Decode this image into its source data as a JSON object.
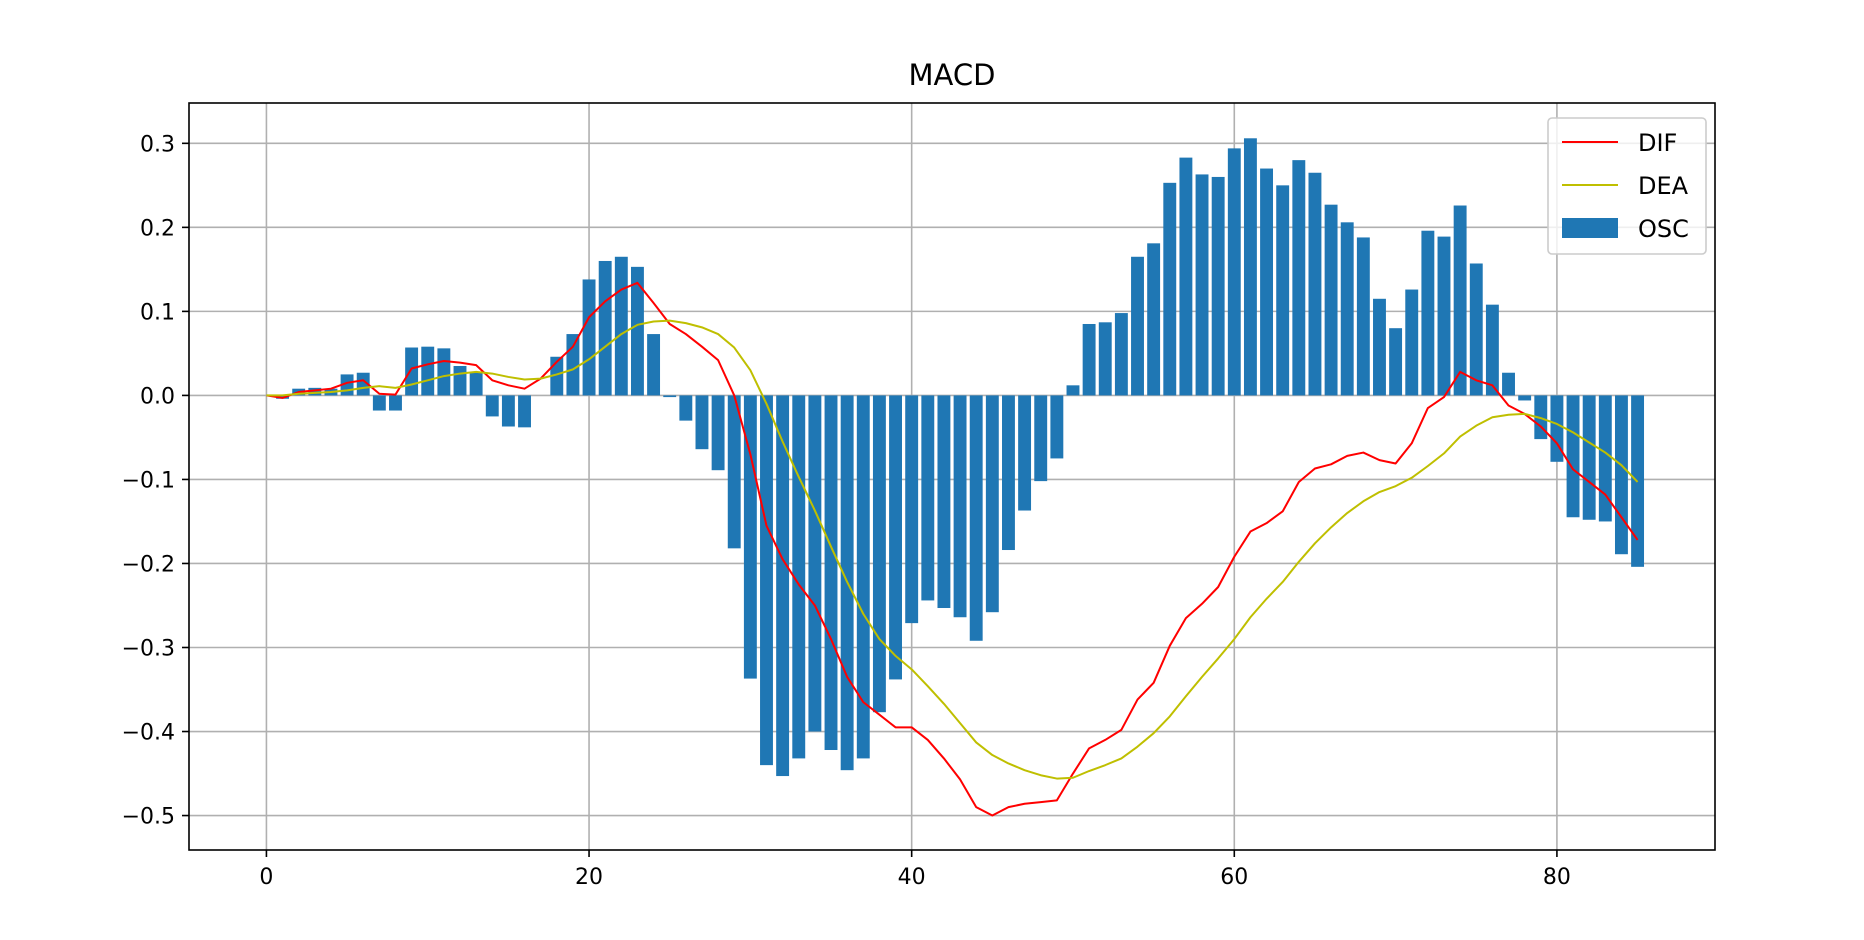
{
  "chart_data": {
    "type": "bar",
    "title": "MACD",
    "xlabel": "",
    "ylabel": "",
    "xlim": [
      -4.8,
      89.8
    ],
    "ylim": [
      -0.541,
      0.348
    ],
    "xticks": [
      0,
      20,
      40,
      60,
      80
    ],
    "xtick_labels": [
      "0",
      "20",
      "40",
      "60",
      "80"
    ],
    "yticks": [
      0.3,
      0.2,
      0.1,
      0.0,
      -0.1,
      -0.2,
      -0.3,
      -0.4,
      -0.5
    ],
    "ytick_labels": [
      "0.3",
      "0.2",
      "0.1",
      "0.0",
      "−0.1",
      "−0.2",
      "−0.3",
      "−0.4",
      "−0.5"
    ],
    "grid": true,
    "legend_position": "top-right",
    "x": [
      0,
      1,
      2,
      3,
      4,
      5,
      6,
      7,
      8,
      9,
      10,
      11,
      12,
      13,
      14,
      15,
      16,
      17,
      18,
      19,
      20,
      21,
      22,
      23,
      24,
      25,
      26,
      27,
      28,
      29,
      30,
      31,
      32,
      33,
      34,
      35,
      36,
      37,
      38,
      39,
      40,
      41,
      42,
      43,
      44,
      45,
      46,
      47,
      48,
      49,
      50,
      51,
      52,
      53,
      54,
      55,
      56,
      57,
      58,
      59,
      60,
      61,
      62,
      63,
      64,
      65,
      66,
      67,
      68,
      69,
      70,
      71,
      72,
      73,
      74,
      75,
      76,
      77,
      78,
      79,
      80,
      81,
      82,
      83,
      84,
      85
    ],
    "series": [
      {
        "name": "DIF",
        "kind": "line",
        "color": "#ff0000",
        "values": [
          0.0,
          -0.003,
          0.004,
          0.006,
          0.008,
          0.015,
          0.018,
          0.002,
          0.001,
          0.032,
          0.037,
          0.041,
          0.039,
          0.036,
          0.018,
          0.012,
          0.008,
          0.02,
          0.04,
          0.058,
          0.093,
          0.112,
          0.126,
          0.134,
          0.11,
          0.085,
          0.073,
          0.058,
          0.042,
          0.0,
          -0.07,
          -0.155,
          -0.195,
          -0.225,
          -0.25,
          -0.29,
          -0.335,
          -0.365,
          -0.38,
          -0.395,
          -0.395,
          -0.41,
          -0.432,
          -0.457,
          -0.49,
          -0.5,
          -0.49,
          -0.486,
          -0.484,
          -0.482,
          -0.45,
          -0.42,
          -0.41,
          -0.398,
          -0.362,
          -0.342,
          -0.298,
          -0.265,
          -0.248,
          -0.228,
          -0.192,
          -0.162,
          -0.152,
          -0.138,
          -0.103,
          -0.087,
          -0.082,
          -0.072,
          -0.068,
          -0.077,
          -0.081,
          -0.057,
          -0.015,
          -0.002,
          0.028,
          0.018,
          0.012,
          -0.012,
          -0.022,
          -0.037,
          -0.057,
          -0.088,
          -0.103,
          -0.118,
          -0.145,
          -0.172
        ]
      },
      {
        "name": "DEA",
        "kind": "line",
        "color": "#bfbf00",
        "values": [
          0.0,
          0.0,
          0.002,
          0.003,
          0.004,
          0.006,
          0.009,
          0.011,
          0.009,
          0.013,
          0.018,
          0.023,
          0.026,
          0.028,
          0.026,
          0.022,
          0.019,
          0.02,
          0.025,
          0.031,
          0.043,
          0.058,
          0.073,
          0.084,
          0.088,
          0.089,
          0.086,
          0.081,
          0.073,
          0.057,
          0.03,
          -0.01,
          -0.055,
          -0.097,
          -0.137,
          -0.18,
          -0.222,
          -0.26,
          -0.29,
          -0.31,
          -0.326,
          -0.346,
          -0.367,
          -0.39,
          -0.413,
          -0.428,
          -0.438,
          -0.446,
          -0.452,
          -0.456,
          -0.455,
          -0.447,
          -0.44,
          -0.432,
          -0.418,
          -0.402,
          -0.382,
          -0.358,
          -0.335,
          -0.313,
          -0.29,
          -0.264,
          -0.242,
          -0.222,
          -0.198,
          -0.176,
          -0.157,
          -0.14,
          -0.126,
          -0.115,
          -0.108,
          -0.098,
          -0.084,
          -0.069,
          -0.049,
          -0.036,
          -0.026,
          -0.023,
          -0.022,
          -0.027,
          -0.034,
          -0.044,
          -0.056,
          -0.068,
          -0.083,
          -0.103
        ]
      },
      {
        "name": "OSC",
        "kind": "bar",
        "color": "#1f77b4",
        "values": [
          0.0,
          -0.004,
          0.008,
          0.009,
          0.008,
          0.025,
          0.027,
          -0.018,
          -0.018,
          0.057,
          0.058,
          0.056,
          0.035,
          0.028,
          -0.025,
          -0.037,
          -0.038,
          0.0,
          0.046,
          0.073,
          0.138,
          0.16,
          0.165,
          0.153,
          0.073,
          -0.002,
          -0.03,
          -0.064,
          -0.089,
          -0.182,
          -0.337,
          -0.44,
          -0.453,
          -0.432,
          -0.4,
          -0.422,
          -0.446,
          -0.432,
          -0.377,
          -0.338,
          -0.271,
          -0.244,
          -0.253,
          -0.264,
          -0.292,
          -0.258,
          -0.184,
          -0.137,
          -0.102,
          -0.075,
          0.012,
          0.085,
          0.087,
          0.098,
          0.165,
          0.181,
          0.253,
          0.283,
          0.263,
          0.26,
          0.294,
          0.306,
          0.27,
          0.25,
          0.28,
          0.265,
          0.227,
          0.206,
          0.188,
          0.115,
          0.08,
          0.126,
          0.196,
          0.189,
          0.226,
          0.157,
          0.108,
          0.027,
          -0.006,
          -0.052,
          -0.079,
          -0.145,
          -0.148,
          -0.15,
          -0.189,
          -0.204
        ]
      }
    ]
  }
}
